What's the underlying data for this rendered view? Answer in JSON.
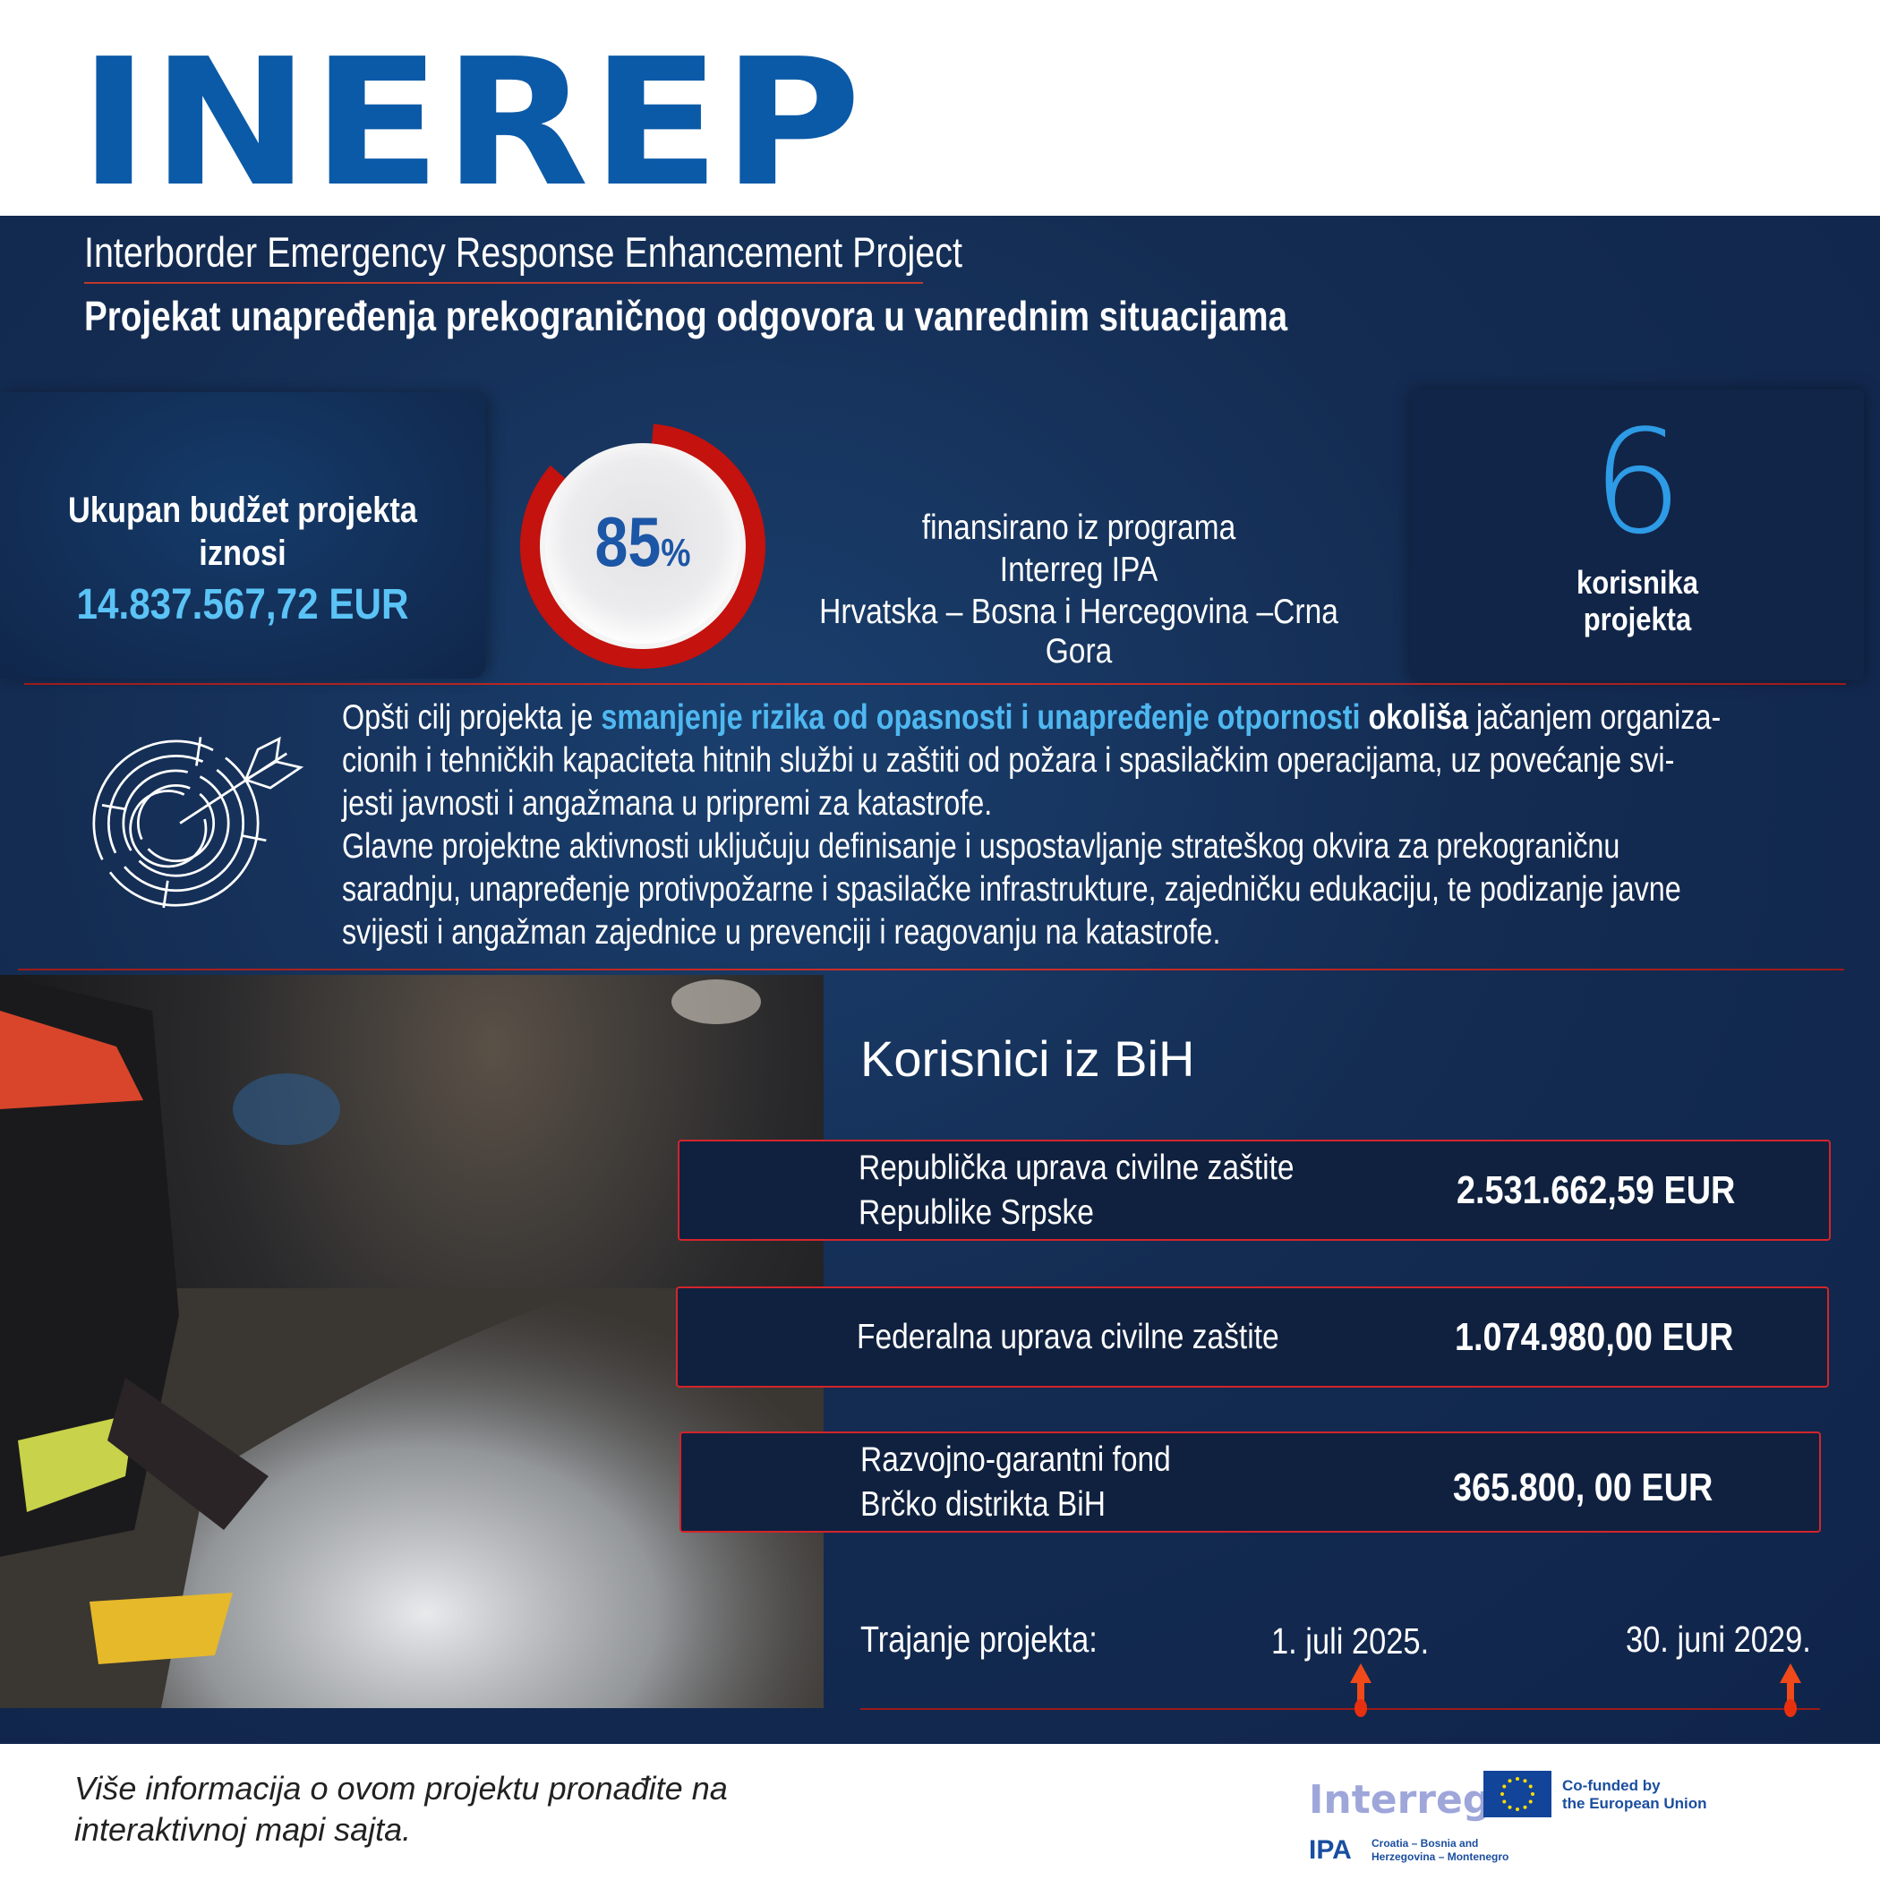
{
  "header": {
    "logo": "INEREP",
    "subtitle_en": "Interborder Emergency Response Enhancement Project",
    "subtitle_bs": "Projekat unapređenja prekograničnog odgovora u vanrednim situacijama"
  },
  "budget": {
    "label_line1": "Ukupan budžet projekta",
    "label_line2": "iznosi",
    "value": "14.837.567,72 EUR"
  },
  "funding": {
    "percent_value": 85,
    "percent": "85",
    "percent_sign": "%",
    "line1": "finansirano iz programa",
    "line2": "Interreg IPA",
    "line3": "Hrvatska – Bosna i Hercegovina –Crna Gora"
  },
  "beneficiaries_count": {
    "number": "6",
    "line1": "korisnika",
    "line2": "projekta"
  },
  "goal": {
    "icon": "target-arrow-icon",
    "lines": [
      [
        {
          "t": "Opšti cilj projekta je ",
          "s": ""
        },
        {
          "t": "smanjenje rizika od opasnosti i unapređenje otpornosti",
          "s": "hl"
        },
        {
          "t": " okoliša",
          "s": "b"
        },
        {
          "t": " jačanjem organiza-",
          "s": ""
        }
      ],
      [
        {
          "t": "cionih i tehničkih kapaciteta hitnih službi u zaštiti od požara i spasilačkim operacijama, uz povećanje svi-",
          "s": ""
        }
      ],
      [
        {
          "t": "jesti javnosti i angažmana u pripremi za katastrofe.",
          "s": ""
        }
      ],
      [
        {
          "t": "Glavne projektne aktivnosti uključuju definisanje i uspostavljanje strateškog okvira za prekograničnu",
          "s": ""
        }
      ],
      [
        {
          "t": "saradnju, unapređenje protivpožarne i spasilačke infrastrukture, zajedničku edukaciju, te podizanje javne",
          "s": ""
        }
      ],
      [
        {
          "t": "svijesti i angažman zajednice u prevenciji i reagovanju na katastrofe.",
          "s": ""
        }
      ]
    ]
  },
  "bih": {
    "title": "Korisnici iz BiH",
    "items": [
      {
        "name1": "Republička uprava civilne zaštite",
        "name2": "Republike Srpske",
        "amount": "2.531.662,59 EUR"
      },
      {
        "name1": "Federalna uprava civilne zaštite",
        "name2": "",
        "amount": "1.074.980,00 EUR"
      },
      {
        "name1": "Razvojno-garantni fond",
        "name2": "Brčko distrikta BiH",
        "amount": "365.800, 00 EUR"
      }
    ]
  },
  "duration": {
    "label": "Trajanje projekta:",
    "start": "1. juli 2025.",
    "end": "30. juni 2029."
  },
  "footer": {
    "line1": "Više informacija o ovom projektu pronađite na",
    "line2": "interaktivnoj mapi sajta.",
    "logo_interreg": "Interreg",
    "eu_text1": "Co-funded by",
    "eu_text2": "the European Union",
    "ipa": "IPA",
    "ipa_text1": "Croatia – Bosnia and",
    "ipa_text2": "Herzegovina – Montenegro"
  },
  "colors": {
    "brand": "#0b5aa8",
    "panel": "#142c52",
    "accent_red": "#d3252b",
    "highlight": "#4fb8f0"
  }
}
